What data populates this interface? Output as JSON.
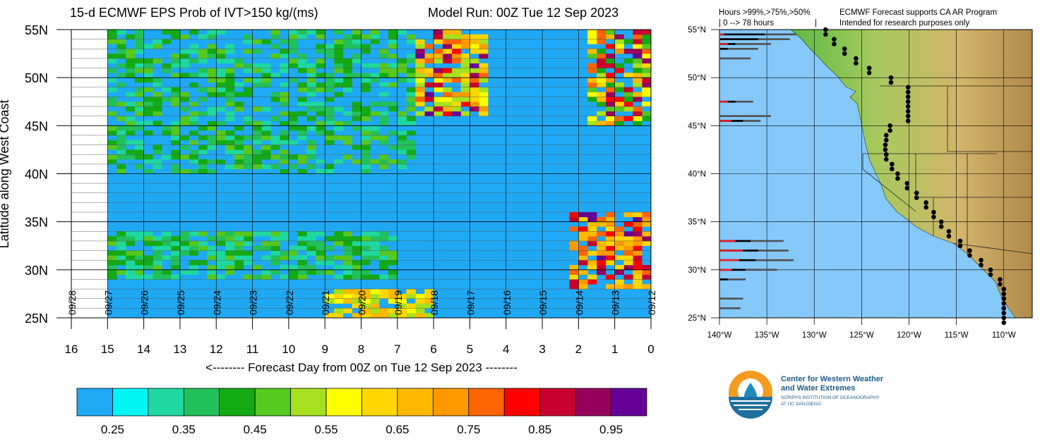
{
  "header": {
    "left_title": "15-d ECMWF EPS Prob of IVT>150 kg/(ms)",
    "right_title": "Model Run: 00Z Tue 12 Sep 2023"
  },
  "chart_data": {
    "type": "heatmap",
    "title": "15-d ECMWF EPS Prob of IVT>150 kg/(ms)",
    "subtitle": "Model Run: 00Z Tue 12 Sep 2023",
    "ylabel": "Latitude along West Coast",
    "xlabel": "<-------- Forecast Day from 00Z on Tue 12 Sep 2023 --------",
    "x_range": [
      16,
      0
    ],
    "x_ticks": [
      "16",
      "15",
      "14",
      "13",
      "12",
      "11",
      "10",
      "9",
      "8",
      "7",
      "6",
      "5",
      "4",
      "3",
      "2",
      "1",
      "0"
    ],
    "y_range": [
      25,
      55
    ],
    "y_ticks": [
      "25N",
      "30N",
      "35N",
      "40N",
      "45N",
      "50N",
      "55N"
    ],
    "date_labels": [
      "09/28",
      "09/27",
      "09/26",
      "09/25",
      "09/24",
      "09/23",
      "09/22",
      "09/21",
      "09/20",
      "09/19",
      "09/18",
      "09/17",
      "09/16",
      "09/15",
      "09/14",
      "09/13",
      "09/12"
    ],
    "colorbar": {
      "colors": [
        "#1fa9f5",
        "#00f5f5",
        "#1fd8a0",
        "#22c05a",
        "#14aa14",
        "#56c81e",
        "#a7e01e",
        "#fefe00",
        "#fed700",
        "#feb900",
        "#fe9900",
        "#fe6400",
        "#fe0000",
        "#c8002d",
        "#96005a",
        "#640096"
      ],
      "labels": [
        "0.25",
        "0.35",
        "0.45",
        "0.55",
        "0.65",
        "0.75",
        "0.85",
        "0.95"
      ]
    },
    "features": [
      {
        "lat": [
          40,
          55
        ],
        "day": [
          6.5,
          15
        ],
        "prob": [
          0.25,
          0.5
        ]
      },
      {
        "lat": [
          29,
          34
        ],
        "day": [
          7,
          15
        ],
        "prob": [
          0.3,
          0.5
        ]
      },
      {
        "lat": [
          25,
          28
        ],
        "day": [
          6,
          9
        ],
        "prob": [
          0.5,
          0.7
        ]
      },
      {
        "lat": [
          46,
          55
        ],
        "day": [
          4.5,
          6.3
        ],
        "prob": [
          0.5,
          0.97
        ]
      },
      {
        "lat": [
          28,
          36
        ],
        "day": [
          0,
          2.1
        ],
        "prob": [
          0.6,
          0.99
        ]
      },
      {
        "lat": [
          45,
          55
        ],
        "day": [
          0,
          1.6
        ],
        "prob": [
          0.4,
          0.99
        ]
      }
    ]
  },
  "map": {
    "header_line1": "Hours >99%,>75%,>50%",
    "header_line2": "| 0 --> 78 hours",
    "header_line3": "|",
    "note_line1": "ECMWF Forecast supports CA AR Program",
    "note_line2": "Intended for research purposes only",
    "lat_labels": [
      "55°N",
      "50°N",
      "45°N",
      "40°N",
      "35°N",
      "30°N",
      "25°N"
    ],
    "lon_labels": [
      "140°W",
      "135°W",
      "130°W",
      "125°W",
      "120°W",
      "115°W",
      "110°W"
    ],
    "colors": {
      "ocean": "#85c8fa",
      "land_low": "#6fbf4a",
      "land_high": "#c9a25a"
    },
    "bar_hours": [
      {
        "lat": 54.5,
        "h99": 3,
        "h75": 35,
        "h50": 60
      },
      {
        "lat": 54,
        "h99": 0,
        "h75": 30,
        "h50": 55
      },
      {
        "lat": 53.5,
        "h99": 6,
        "h75": 12,
        "h50": 40
      },
      {
        "lat": 53,
        "h99": 0,
        "h75": 6,
        "h50": 30
      },
      {
        "lat": 52,
        "h99": 0,
        "h75": 0,
        "h50": 24
      },
      {
        "lat": 47.5,
        "h99": 6,
        "h75": 12,
        "h50": 26
      },
      {
        "lat": 46,
        "h99": 0,
        "h75": 0,
        "h50": 40
      },
      {
        "lat": 45.5,
        "h99": 9,
        "h75": 18,
        "h50": 32
      },
      {
        "lat": 33,
        "h99": 12,
        "h75": 24,
        "h50": 50
      },
      {
        "lat": 32,
        "h99": 18,
        "h75": 30,
        "h50": 54
      },
      {
        "lat": 31,
        "h99": 15,
        "h75": 28,
        "h50": 58
      },
      {
        "lat": 30,
        "h99": 9,
        "h75": 20,
        "h50": 45
      },
      {
        "lat": 29,
        "h99": 0,
        "h75": 6,
        "h50": 20
      },
      {
        "lat": 27,
        "h99": 0,
        "h75": 0,
        "h50": 18
      },
      {
        "lat": 26,
        "h99": 0,
        "h75": 0,
        "h50": 16
      }
    ]
  },
  "logo": {
    "name_line1": "Center for Western Weather",
    "name_line2": "and Water Extremes",
    "sub_line1": "SCRIPPS INSTITUTION OF OCEANOGRAPHY",
    "sub_line2": "AT UC SAN DIEGO"
  }
}
